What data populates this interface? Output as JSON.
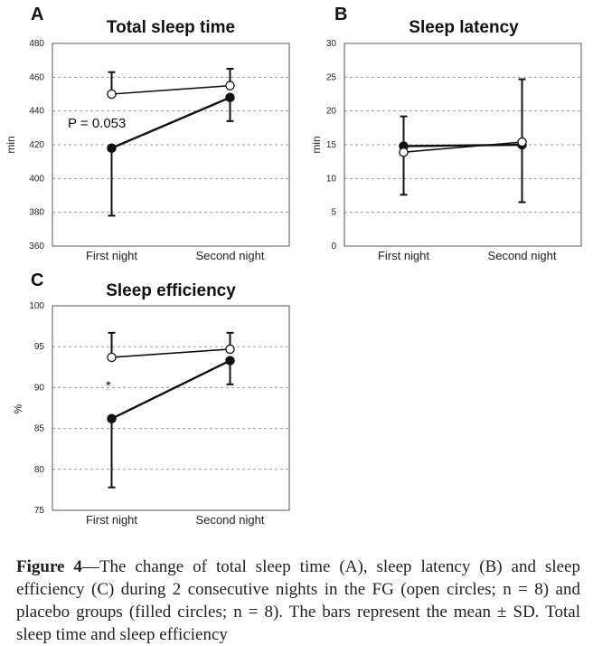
{
  "chart_data": [
    {
      "type": "line",
      "panel": "A",
      "title": "Total sleep time",
      "ylabel": "min",
      "xlabel": "",
      "categories": [
        "First night",
        "Second night"
      ],
      "ylim": [
        360,
        480
      ],
      "yticks": [
        360,
        380,
        400,
        420,
        440,
        460,
        480
      ],
      "grid": true,
      "annotation": "P = 0.053",
      "series": [
        {
          "name": "FG (open circles)",
          "marker": "open",
          "values": [
            450,
            455
          ],
          "sd_upper": [
            463,
            465
          ],
          "sd_lower": [
            null,
            null
          ]
        },
        {
          "name": "Placebo (filled circles)",
          "marker": "filled",
          "values": [
            418,
            448
          ],
          "sd_upper": [
            null,
            null
          ],
          "sd_lower": [
            378,
            434
          ]
        }
      ]
    },
    {
      "type": "line",
      "panel": "B",
      "title": "Sleep latency",
      "ylabel": "min",
      "xlabel": "",
      "categories": [
        "First night",
        "Second night"
      ],
      "ylim": [
        0,
        30
      ],
      "yticks": [
        0,
        5,
        10,
        15,
        20,
        25,
        30
      ],
      "grid": true,
      "annotation": "",
      "series": [
        {
          "name": "FG (open circles)",
          "marker": "open",
          "values": [
            13.9,
            15.4
          ],
          "sd_upper": [
            19.2,
            24.7
          ],
          "sd_lower": [
            7.6,
            6.5
          ]
        },
        {
          "name": "Placebo (filled circles)",
          "marker": "filled",
          "values": [
            14.8,
            15.0
          ],
          "sd_upper": [
            null,
            null
          ],
          "sd_lower": [
            null,
            null
          ]
        }
      ]
    },
    {
      "type": "line",
      "panel": "C",
      "title": "Sleep efficiency",
      "ylabel": "%",
      "xlabel": "",
      "categories": [
        "First night",
        "Second night"
      ],
      "ylim": [
        75,
        100
      ],
      "yticks": [
        75,
        80,
        85,
        90,
        95,
        100
      ],
      "grid": true,
      "annotation": "*",
      "series": [
        {
          "name": "FG (open circles)",
          "marker": "open",
          "values": [
            93.7,
            94.7
          ],
          "sd_upper": [
            96.7,
            96.7
          ],
          "sd_lower": [
            null,
            null
          ]
        },
        {
          "name": "Placebo (filled circles)",
          "marker": "filled",
          "values": [
            86.2,
            93.3
          ],
          "sd_upper": [
            null,
            null
          ],
          "sd_lower": [
            77.8,
            90.4
          ]
        }
      ]
    }
  ],
  "caption": {
    "label": "Figure 4",
    "text": "—The change of total sleep time (A), sleep latency (B) and sleep efficiency (C) during 2 consecutive nights in the FG (open circles; n = 8) and placebo groups (filled circles; n = 8). The bars represent the mean ± SD. Total sleep time and sleep efficiency"
  }
}
